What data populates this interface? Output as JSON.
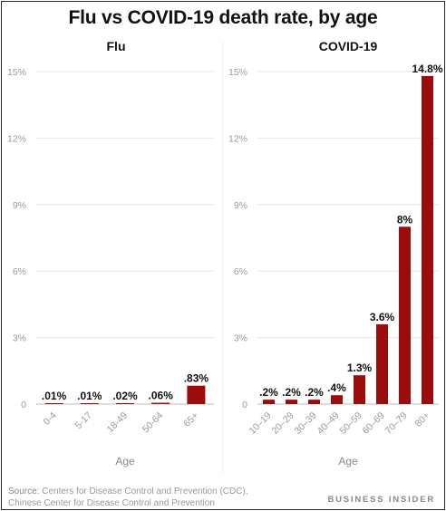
{
  "title": "Flu vs COVID-19 death rate, by age",
  "colors": {
    "bar": "#9b0d0d",
    "grid": "#e6e6e6",
    "tick": "#9a9a9a",
    "axis": "#bdbdbd"
  },
  "chart_data": [
    {
      "type": "bar",
      "title": "Flu",
      "xlabel": "Age",
      "ylabel": "",
      "ylim": [
        0,
        15
      ],
      "yticks": [
        "0",
        "3%",
        "6%",
        "9%",
        "12%",
        "15%"
      ],
      "grid": true,
      "categories": [
        "0-4",
        "5-17",
        "18-49",
        "50-64",
        "65+"
      ],
      "values": [
        0.01,
        0.01,
        0.02,
        0.06,
        0.83
      ],
      "data_labels": [
        ".01%",
        ".01%",
        ".02%",
        ".06%",
        ".83%"
      ]
    },
    {
      "type": "bar",
      "title": "COVID-19",
      "xlabel": "Age",
      "ylabel": "",
      "ylim": [
        0,
        15
      ],
      "yticks": [
        "0",
        "3%",
        "6%",
        "9%",
        "12%",
        "15%"
      ],
      "grid": true,
      "categories": [
        "10–19",
        "20–29",
        "30–39",
        "40–49",
        "50–59",
        "60–69",
        "70–79",
        "80+"
      ],
      "values": [
        0.2,
        0.2,
        0.2,
        0.4,
        1.3,
        3.6,
        8,
        14.8
      ],
      "data_labels": [
        ".2%",
        ".2%",
        ".2%",
        ".4%",
        "1.3%",
        "3.6%",
        "8%",
        "14.8%"
      ]
    }
  ],
  "source": {
    "label": "Source:",
    "line1": "Centers for Disease Control and Prevention (CDC),",
    "line2": "Chinese Center for Disease Control and Prevention"
  },
  "brand": "BUSINESS INSIDER"
}
